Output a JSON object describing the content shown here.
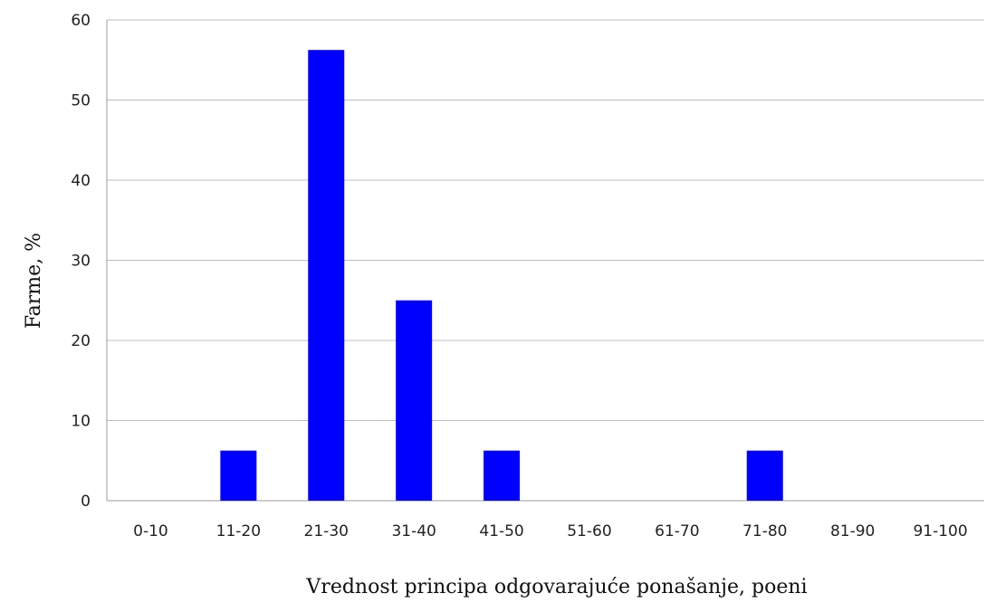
{
  "chart_data": {
    "type": "bar",
    "categories": [
      "0-10",
      "11-20",
      "21-30",
      "31-40",
      "41-50",
      "51-60",
      "61-70",
      "71-80",
      "81-90",
      "91-100"
    ],
    "values": [
      0,
      6.25,
      56.25,
      25,
      6.25,
      0,
      0,
      6.25,
      0,
      0
    ],
    "yticks": [
      0,
      10,
      20,
      30,
      40,
      50,
      60
    ],
    "ylim": [
      0,
      60
    ],
    "xlabel": "Vrednost principa odgovarajuće ponašanje, poeni",
    "ylabel": "Farme, %",
    "grid": "horizontal",
    "legend": "none",
    "bar_color": "#0000ff"
  }
}
